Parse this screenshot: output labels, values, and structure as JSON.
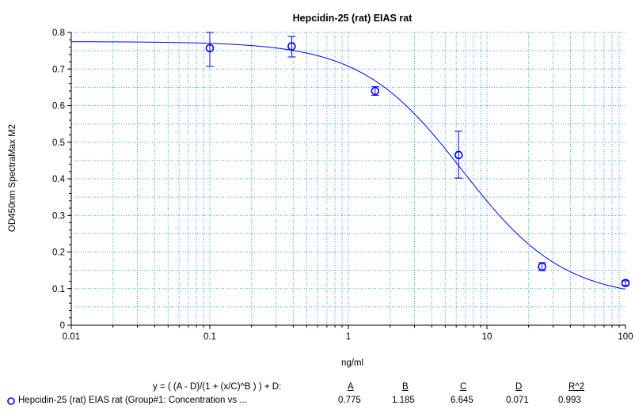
{
  "chart_data": {
    "type": "scatter",
    "title": "Hepcidin-25 (rat) EIAS rat",
    "xlabel": "ng/ml",
    "ylabel": "OD450nm SpectraMax M2",
    "x_scale": "log",
    "xlim": [
      0.01,
      100
    ],
    "ylim": [
      0,
      0.8
    ],
    "x_ticks": [
      "0.01",
      "0.1",
      "1",
      "10",
      "100"
    ],
    "y_ticks": [
      "0",
      "0.1",
      "0.2",
      "0.3",
      "0.4",
      "0.5",
      "0.6",
      "0.7",
      "0.8"
    ],
    "grid": true,
    "series": [
      {
        "name": "Hepcidin-25 (rat) EIAS rat (Group#1: Concentration vs ...",
        "color": "#0000ff",
        "marker": "circle-open",
        "points": [
          {
            "x": 0.1,
            "y": 0.757,
            "err_low": 0.707,
            "err_high": 0.8
          },
          {
            "x": 0.39,
            "y": 0.762,
            "err_low": 0.733,
            "err_high": 0.789
          },
          {
            "x": 1.56,
            "y": 0.64,
            "err_low": 0.628,
            "err_high": 0.652
          },
          {
            "x": 6.25,
            "y": 0.465,
            "err_low": 0.402,
            "err_high": 0.53
          },
          {
            "x": 25,
            "y": 0.16,
            "err_low": 0.149,
            "err_high": 0.171
          },
          {
            "x": 100,
            "y": 0.115,
            "err_low": 0.109,
            "err_high": 0.121
          }
        ],
        "fit": {
          "A": 0.775,
          "B": 1.185,
          "C": 6.645,
          "D": 0.071
        }
      }
    ],
    "fit_table": {
      "equation": "y = ( (A - D)/(1 + (x/C)^B ) ) + D:",
      "headers": [
        "A",
        "B",
        "C",
        "D",
        "R^2"
      ],
      "values": [
        "0.775",
        "1.185",
        "6.645",
        "0.071",
        "0.993"
      ]
    }
  }
}
